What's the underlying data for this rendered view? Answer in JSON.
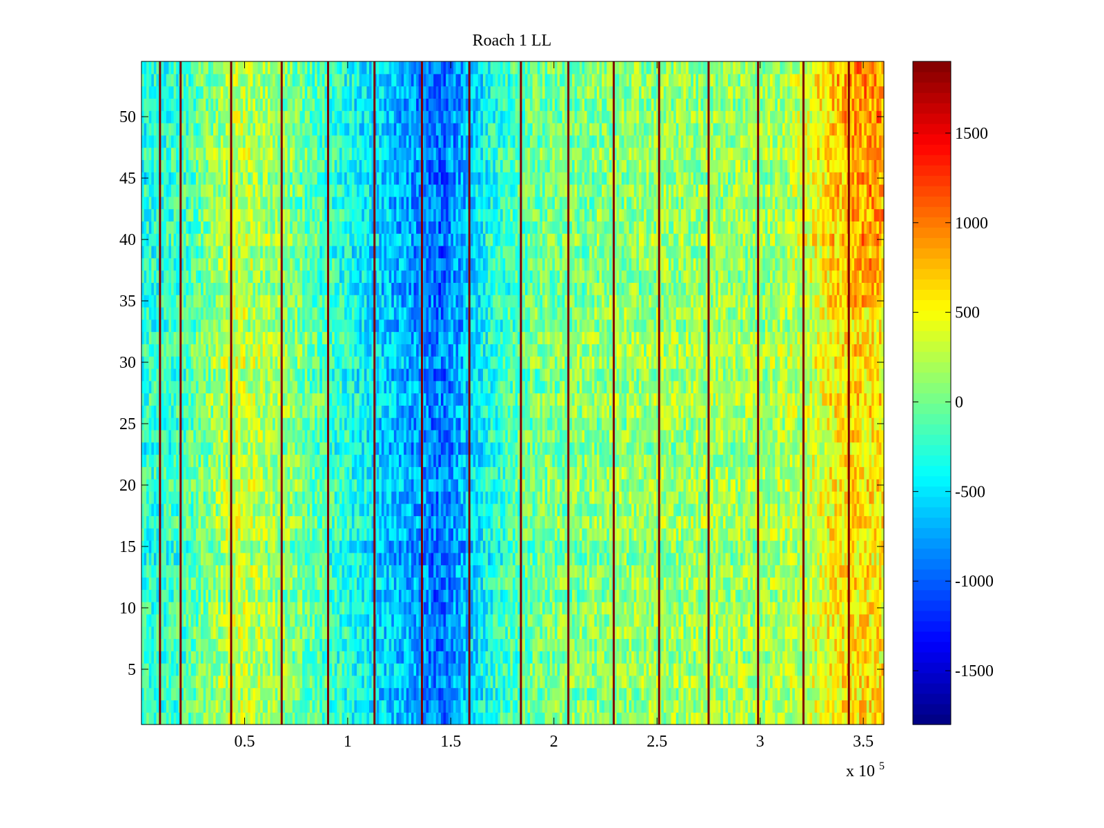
{
  "chart_data": {
    "type": "heatmap",
    "title": "Roach 1 LL",
    "xlabel": "",
    "ylabel": "",
    "x_exponent_label": "x 10",
    "x_exponent_power": "5",
    "xlim": [
      0,
      360000
    ],
    "ylim": [
      0.5,
      54.5
    ],
    "n_rows": 54,
    "x_ticks": [
      {
        "value": 50000,
        "label": "0.5"
      },
      {
        "value": 100000,
        "label": "1"
      },
      {
        "value": 150000,
        "label": "1.5"
      },
      {
        "value": 200000,
        "label": "2"
      },
      {
        "value": 250000,
        "label": "2.5"
      },
      {
        "value": 300000,
        "label": "3"
      },
      {
        "value": 350000,
        "label": "3.5"
      }
    ],
    "y_ticks": [
      {
        "value": 5,
        "label": "5"
      },
      {
        "value": 10,
        "label": "10"
      },
      {
        "value": 15,
        "label": "15"
      },
      {
        "value": 20,
        "label": "20"
      },
      {
        "value": 25,
        "label": "25"
      },
      {
        "value": 30,
        "label": "30"
      },
      {
        "value": 35,
        "label": "35"
      },
      {
        "value": 40,
        "label": "40"
      },
      {
        "value": 45,
        "label": "45"
      },
      {
        "value": 50,
        "label": "50"
      }
    ],
    "colorbar": {
      "colormap": "jet",
      "range": [
        -1800,
        1900
      ],
      "ticks": [
        {
          "value": -1500,
          "label": "-1500"
        },
        {
          "value": -1000,
          "label": "-1000"
        },
        {
          "value": -500,
          "label": "-500"
        },
        {
          "value": 0,
          "label": "0"
        },
        {
          "value": 500,
          "label": "500"
        },
        {
          "value": 1000,
          "label": "1000"
        },
        {
          "value": 1500,
          "label": "1500"
        }
      ]
    },
    "column_profile": {
      "x": [
        0,
        20000,
        45000,
        70000,
        95000,
        120000,
        135000,
        145000,
        155000,
        170000,
        190000,
        230000,
        270000,
        300000,
        320000,
        335000,
        345000,
        360000
      ],
      "mean_value": [
        -300,
        -200,
        300,
        100,
        -250,
        -600,
        -800,
        -950,
        -700,
        -300,
        0,
        100,
        150,
        150,
        250,
        500,
        600,
        550
      ]
    },
    "hot_region": {
      "x_range": [
        310000,
        360000
      ],
      "y_range": [
        35,
        54
      ],
      "peak_value": 1100
    },
    "vertical_spike_lines": {
      "x": [
        9000,
        19000,
        43500,
        68000,
        90500,
        113000,
        136000,
        159000,
        184000,
        207000,
        229000,
        251000,
        275000,
        299000,
        321000,
        343000
      ],
      "value": 1900
    },
    "noise_amplitude": 350
  }
}
